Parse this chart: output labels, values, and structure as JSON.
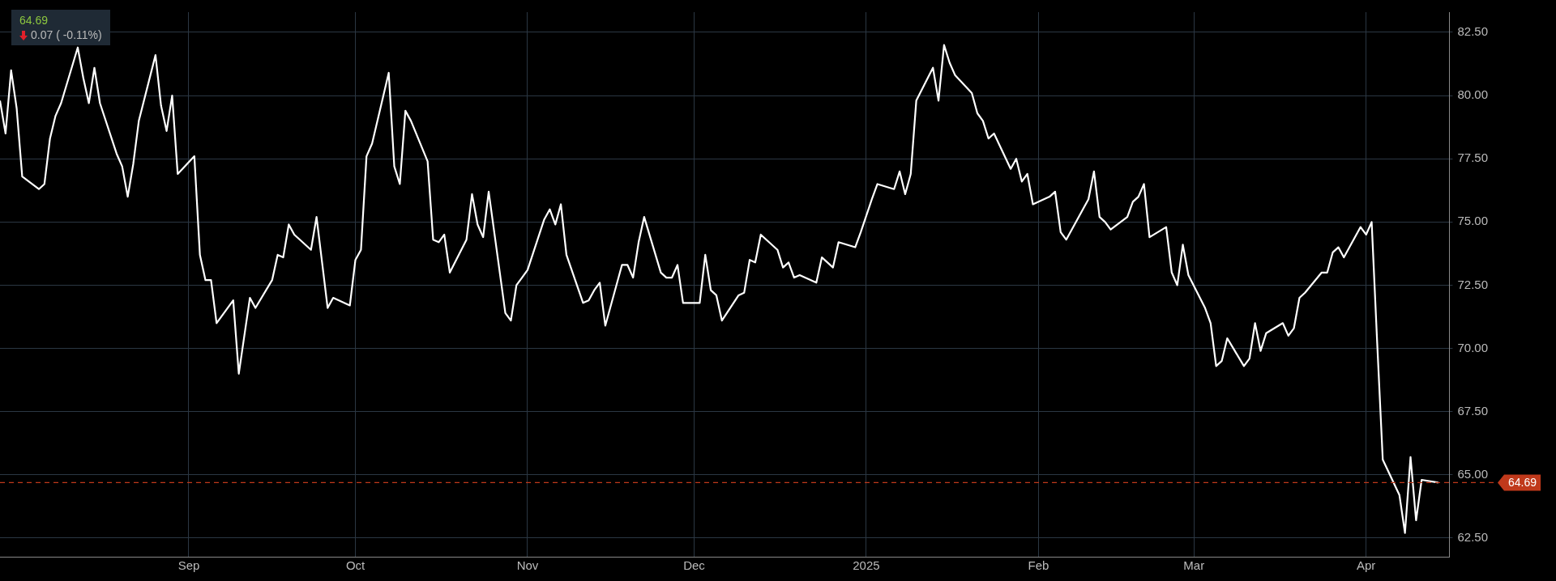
{
  "chart_data": {
    "type": "line",
    "color": "#ffffff",
    "marker": "none",
    "line_style": "solid",
    "grid": true,
    "legend": false,
    "annotations": [
      "64.69",
      "0.07 ( -0.11%)"
    ],
    "ref_lines": [
      {
        "axis": "y",
        "value": 64.69,
        "label": "64.69",
        "color": "#c0391b",
        "line_style": "dashed"
      }
    ],
    "xlim": [
      "2024-07-29",
      "2025-04-16"
    ],
    "xticks": [
      {
        "value": "2024-09-01",
        "label": "Sep"
      },
      {
        "value": "2024-10-01",
        "label": "Oct"
      },
      {
        "value": "2024-11-01",
        "label": "Nov"
      },
      {
        "value": "2024-12-01",
        "label": "Dec"
      },
      {
        "value": "2025-01-01",
        "label": "2025"
      },
      {
        "value": "2025-02-01",
        "label": "Feb"
      },
      {
        "value": "2025-03-01",
        "label": "Mar"
      },
      {
        "value": "2025-04-01",
        "label": "Apr"
      }
    ],
    "ylim": [
      61.76,
      83.3
    ],
    "yticks": [
      {
        "value": 62.5,
        "label": "62.50"
      },
      {
        "value": 65,
        "label": "65.00"
      },
      {
        "value": 67.5,
        "label": "67.50"
      },
      {
        "value": 70,
        "label": "70.00"
      },
      {
        "value": 72.5,
        "label": "72.50"
      },
      {
        "value": 75,
        "label": "75.00"
      },
      {
        "value": 77.5,
        "label": "77.50"
      },
      {
        "value": 80,
        "label": "80.00"
      },
      {
        "value": 82.5,
        "label": "82.50"
      }
    ],
    "x": [
      "2024-07-29",
      "2024-07-30",
      "2024-07-31",
      "2024-08-01",
      "2024-08-02",
      "2024-08-05",
      "2024-08-06",
      "2024-08-07",
      "2024-08-08",
      "2024-08-09",
      "2024-08-12",
      "2024-08-13",
      "2024-08-14",
      "2024-08-15",
      "2024-08-16",
      "2024-08-19",
      "2024-08-20",
      "2024-08-21",
      "2024-08-22",
      "2024-08-23",
      "2024-08-26",
      "2024-08-27",
      "2024-08-28",
      "2024-08-29",
      "2024-08-30",
      "2024-09-02",
      "2024-09-03",
      "2024-09-04",
      "2024-09-05",
      "2024-09-06",
      "2024-09-09",
      "2024-09-10",
      "2024-09-11",
      "2024-09-12",
      "2024-09-13",
      "2024-09-16",
      "2024-09-17",
      "2024-09-18",
      "2024-09-19",
      "2024-09-20",
      "2024-09-23",
      "2024-09-24",
      "2024-09-25",
      "2024-09-26",
      "2024-09-27",
      "2024-09-30",
      "2024-10-01",
      "2024-10-02",
      "2024-10-03",
      "2024-10-04",
      "2024-10-07",
      "2024-10-08",
      "2024-10-09",
      "2024-10-10",
      "2024-10-11",
      "2024-10-14",
      "2024-10-15",
      "2024-10-16",
      "2024-10-17",
      "2024-10-18",
      "2024-10-21",
      "2024-10-22",
      "2024-10-23",
      "2024-10-24",
      "2024-10-25",
      "2024-10-28",
      "2024-10-29",
      "2024-10-30",
      "2024-10-31",
      "2024-11-01",
      "2024-11-04",
      "2024-11-05",
      "2024-11-06",
      "2024-11-07",
      "2024-11-08",
      "2024-11-11",
      "2024-11-12",
      "2024-11-13",
      "2024-11-14",
      "2024-11-15",
      "2024-11-18",
      "2024-11-19",
      "2024-11-20",
      "2024-11-21",
      "2024-11-22",
      "2024-11-25",
      "2024-11-26",
      "2024-11-27",
      "2024-11-28",
      "2024-11-29",
      "2024-12-02",
      "2024-12-03",
      "2024-12-04",
      "2024-12-05",
      "2024-12-06",
      "2024-12-09",
      "2024-12-10",
      "2024-12-11",
      "2024-12-12",
      "2024-12-13",
      "2024-12-16",
      "2024-12-17",
      "2024-12-18",
      "2024-12-19",
      "2024-12-20",
      "2024-12-23",
      "2024-12-24",
      "2024-12-26",
      "2024-12-27",
      "2024-12-30",
      "2024-12-31",
      "2025-01-02",
      "2025-01-03",
      "2025-01-06",
      "2025-01-07",
      "2025-01-08",
      "2025-01-09",
      "2025-01-10",
      "2025-01-13",
      "2025-01-14",
      "2025-01-15",
      "2025-01-16",
      "2025-01-17",
      "2025-01-20",
      "2025-01-21",
      "2025-01-22",
      "2025-01-23",
      "2025-01-24",
      "2025-01-27",
      "2025-01-28",
      "2025-01-29",
      "2025-01-30",
      "2025-01-31",
      "2025-02-03",
      "2025-02-04",
      "2025-02-05",
      "2025-02-06",
      "2025-02-07",
      "2025-02-10",
      "2025-02-11",
      "2025-02-12",
      "2025-02-13",
      "2025-02-14",
      "2025-02-17",
      "2025-02-18",
      "2025-02-19",
      "2025-02-20",
      "2025-02-21",
      "2025-02-24",
      "2025-02-25",
      "2025-02-26",
      "2025-02-27",
      "2025-02-28",
      "2025-03-03",
      "2025-03-04",
      "2025-03-05",
      "2025-03-06",
      "2025-03-07",
      "2025-03-10",
      "2025-03-11",
      "2025-03-12",
      "2025-03-13",
      "2025-03-14",
      "2025-03-17",
      "2025-03-18",
      "2025-03-19",
      "2025-03-20",
      "2025-03-21",
      "2025-03-24",
      "2025-03-25",
      "2025-03-26",
      "2025-03-27",
      "2025-03-28",
      "2025-03-31",
      "2025-04-01",
      "2025-04-02",
      "2025-04-03",
      "2025-04-04",
      "2025-04-07",
      "2025-04-08",
      "2025-04-09",
      "2025-04-10",
      "2025-04-11",
      "2025-04-14"
    ],
    "values": [
      79.8,
      78.5,
      81.0,
      79.5,
      76.8,
      76.3,
      76.5,
      78.3,
      79.2,
      79.7,
      81.9,
      80.7,
      79.7,
      81.1,
      79.7,
      77.7,
      77.2,
      76.0,
      77.3,
      79.0,
      81.6,
      79.6,
      78.6,
      80.0,
      76.9,
      77.6,
      73.7,
      72.7,
      72.7,
      71.0,
      71.9,
      69.0,
      70.5,
      72.0,
      71.6,
      72.7,
      73.7,
      73.6,
      74.9,
      74.5,
      73.9,
      75.2,
      73.4,
      71.6,
      72.0,
      71.7,
      73.5,
      73.9,
      77.6,
      78.1,
      80.9,
      77.2,
      76.5,
      79.4,
      79.0,
      77.4,
      74.3,
      74.2,
      74.5,
      73.0,
      74.3,
      76.1,
      74.9,
      74.4,
      76.2,
      71.4,
      71.1,
      72.5,
      72.8,
      73.1,
      75.1,
      75.5,
      74.9,
      75.7,
      73.7,
      71.8,
      71.9,
      72.3,
      72.6,
      70.9,
      73.3,
      73.3,
      72.8,
      74.2,
      75.2,
      73.0,
      72.8,
      72.8,
      73.3,
      71.8,
      71.8,
      73.7,
      72.3,
      72.1,
      71.1,
      72.1,
      72.2,
      73.5,
      73.4,
      74.5,
      73.9,
      73.2,
      73.4,
      72.8,
      72.9,
      72.6,
      73.6,
      73.2,
      74.2,
      74.0,
      74.6,
      75.9,
      76.5,
      76.3,
      77.0,
      76.1,
      76.9,
      79.8,
      81.1,
      79.8,
      82.0,
      81.3,
      80.8,
      80.1,
      79.3,
      79.0,
      78.3,
      78.5,
      77.1,
      77.5,
      76.6,
      76.9,
      75.7,
      76.0,
      76.2,
      74.6,
      74.3,
      74.7,
      75.9,
      77.0,
      75.2,
      75.0,
      74.7,
      75.2,
      75.8,
      76.0,
      76.5,
      74.4,
      74.8,
      73.0,
      72.5,
      74.1,
      72.9,
      71.6,
      71.0,
      69.3,
      69.5,
      70.4,
      69.3,
      69.6,
      71.0,
      69.9,
      70.6,
      71.0,
      70.5,
      70.8,
      72.0,
      72.2,
      73.0,
      73.0,
      73.8,
      74.0,
      73.6,
      74.8,
      74.5,
      75.0,
      70.2,
      65.6,
      64.2,
      62.7,
      65.7,
      63.2,
      64.8,
      64.69
    ]
  }
}
